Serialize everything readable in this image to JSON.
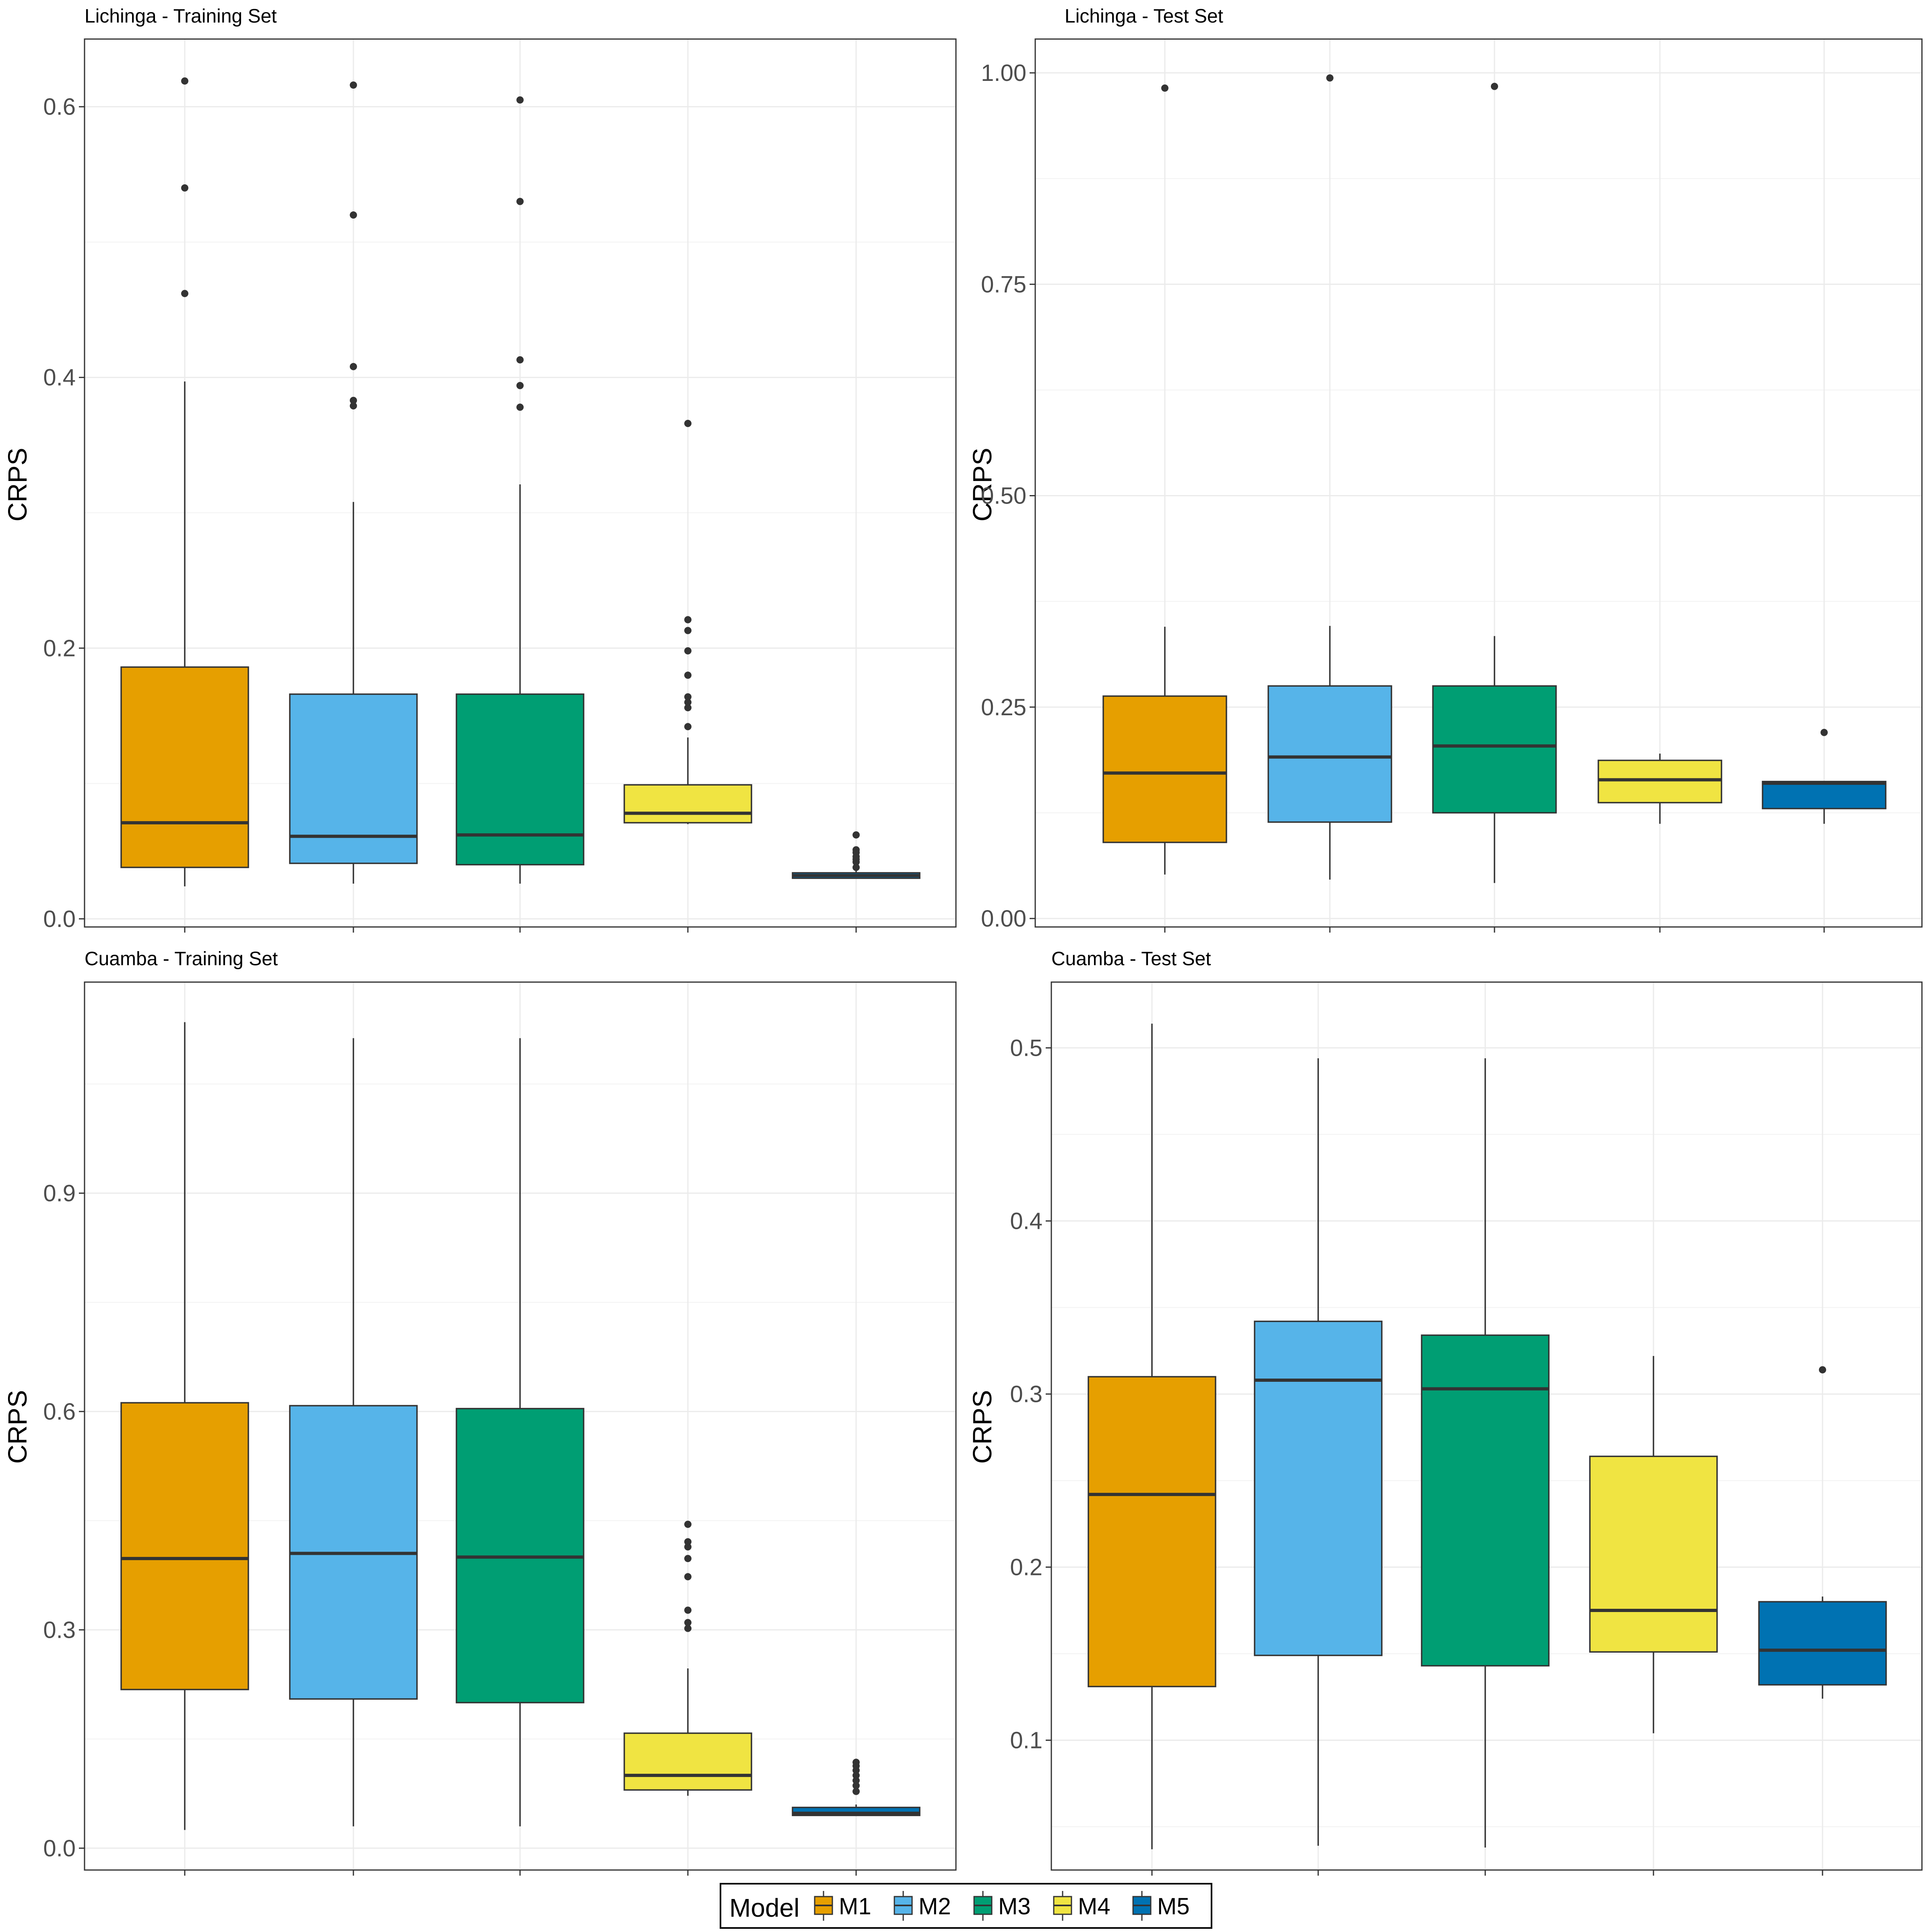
{
  "chart_data": [
    {
      "type": "box",
      "title": "Lichinga - Training Set",
      "ylabel": "CRPS",
      "ylim": [
        -0.006,
        0.65
      ],
      "yticks": [
        0.0,
        0.2,
        0.4,
        0.6
      ],
      "ytick_labels": [
        "0.0",
        "0.2",
        "0.4",
        "0.6"
      ],
      "boxes": [
        {
          "model": "M1",
          "whisker_low": 0.024,
          "q1": 0.038,
          "median": 0.071,
          "q3": 0.186,
          "whisker_high": 0.397,
          "outliers": [
            0.462,
            0.54,
            0.619
          ]
        },
        {
          "model": "M2",
          "whisker_low": 0.026,
          "q1": 0.041,
          "median": 0.061,
          "q3": 0.166,
          "whisker_high": 0.308,
          "outliers": [
            0.379,
            0.383,
            0.408,
            0.52,
            0.616
          ]
        },
        {
          "model": "M3",
          "whisker_low": 0.026,
          "q1": 0.04,
          "median": 0.062,
          "q3": 0.166,
          "whisker_high": 0.321,
          "outliers": [
            0.378,
            0.394,
            0.413,
            0.53,
            0.605
          ]
        },
        {
          "model": "M4",
          "whisker_low": 0.07,
          "q1": 0.071,
          "median": 0.078,
          "q3": 0.099,
          "whisker_high": 0.134,
          "outliers": [
            0.142,
            0.156,
            0.16,
            0.164,
            0.18,
            0.198,
            0.213,
            0.221,
            0.366
          ]
        },
        {
          "model": "M5",
          "whisker_low": 0.03,
          "q1": 0.03,
          "median": 0.032,
          "q3": 0.034,
          "whisker_high": 0.036,
          "outliers": [
            0.038,
            0.042,
            0.044,
            0.046,
            0.049,
            0.051,
            0.062
          ]
        }
      ]
    },
    {
      "type": "box",
      "title": "Lichinga - Test Set",
      "ylabel": "CRPS",
      "ylim": [
        -0.01,
        1.04
      ],
      "yticks": [
        0.0,
        0.25,
        0.5,
        0.75,
        1.0
      ],
      "ytick_labels": [
        "0.00",
        "0.25",
        "0.50",
        "0.75",
        "1.00"
      ],
      "boxes": [
        {
          "model": "M1",
          "whisker_low": 0.052,
          "q1": 0.09,
          "median": 0.172,
          "q3": 0.263,
          "whisker_high": 0.345,
          "outliers": [
            0.982
          ]
        },
        {
          "model": "M2",
          "whisker_low": 0.046,
          "q1": 0.114,
          "median": 0.191,
          "q3": 0.275,
          "whisker_high": 0.346,
          "outliers": [
            0.994
          ]
        },
        {
          "model": "M3",
          "whisker_low": 0.042,
          "q1": 0.125,
          "median": 0.204,
          "q3": 0.275,
          "whisker_high": 0.334,
          "outliers": [
            0.984
          ]
        },
        {
          "model": "M4",
          "whisker_low": 0.112,
          "q1": 0.137,
          "median": 0.164,
          "q3": 0.187,
          "whisker_high": 0.195,
          "outliers": []
        },
        {
          "model": "M5",
          "whisker_low": 0.112,
          "q1": 0.13,
          "median": 0.16,
          "q3": 0.162,
          "whisker_high": 0.162,
          "outliers": [
            0.22
          ]
        }
      ]
    },
    {
      "type": "box",
      "title": "Cuamba - Training Set",
      "ylabel": "CRPS",
      "ylim": [
        -0.03,
        1.19
      ],
      "yticks": [
        0.0,
        0.3,
        0.6,
        0.9
      ],
      "ytick_labels": [
        "0.0",
        "0.3",
        "0.6",
        "0.9"
      ],
      "boxes": [
        {
          "model": "M1",
          "whisker_low": 0.025,
          "q1": 0.218,
          "median": 0.398,
          "q3": 0.612,
          "whisker_high": 1.135,
          "outliers": []
        },
        {
          "model": "M2",
          "whisker_low": 0.03,
          "q1": 0.205,
          "median": 0.405,
          "q3": 0.608,
          "whisker_high": 1.113,
          "outliers": []
        },
        {
          "model": "M3",
          "whisker_low": 0.03,
          "q1": 0.2,
          "median": 0.4,
          "q3": 0.604,
          "whisker_high": 1.113,
          "outliers": []
        },
        {
          "model": "M4",
          "whisker_low": 0.072,
          "q1": 0.08,
          "median": 0.1,
          "q3": 0.158,
          "whisker_high": 0.247,
          "outliers": [
            0.302,
            0.31,
            0.327,
            0.373,
            0.398,
            0.414,
            0.421,
            0.445
          ]
        },
        {
          "model": "M5",
          "whisker_low": 0.045,
          "q1": 0.045,
          "median": 0.048,
          "q3": 0.056,
          "whisker_high": 0.06,
          "outliers": [
            0.078,
            0.086,
            0.093,
            0.1,
            0.107,
            0.113,
            0.118
          ]
        }
      ]
    },
    {
      "type": "box",
      "title": "Cuamba - Test Set",
      "ylabel": "CRPS",
      "ylim": [
        0.025,
        0.538
      ],
      "yticks": [
        0.1,
        0.2,
        0.3,
        0.4,
        0.5
      ],
      "ytick_labels": [
        "0.1",
        "0.2",
        "0.3",
        "0.4",
        "0.5"
      ],
      "boxes": [
        {
          "model": "M1",
          "whisker_low": 0.037,
          "q1": 0.131,
          "median": 0.242,
          "q3": 0.31,
          "whisker_high": 0.514,
          "outliers": []
        },
        {
          "model": "M2",
          "whisker_low": 0.039,
          "q1": 0.149,
          "median": 0.308,
          "q3": 0.342,
          "whisker_high": 0.494,
          "outliers": []
        },
        {
          "model": "M3",
          "whisker_low": 0.038,
          "q1": 0.143,
          "median": 0.303,
          "q3": 0.334,
          "whisker_high": 0.494,
          "outliers": []
        },
        {
          "model": "M4",
          "whisker_low": 0.104,
          "q1": 0.151,
          "median": 0.175,
          "q3": 0.264,
          "whisker_high": 0.322,
          "outliers": []
        },
        {
          "model": "M5",
          "whisker_low": 0.124,
          "q1": 0.132,
          "median": 0.152,
          "q3": 0.18,
          "whisker_high": 0.183,
          "outliers": [
            0.314
          ]
        }
      ]
    }
  ],
  "legend": {
    "title": "Model",
    "entries": [
      {
        "label": "M1",
        "color": "#E69F00"
      },
      {
        "label": "M2",
        "color": "#56B4E9"
      },
      {
        "label": "M3",
        "color": "#009E73"
      },
      {
        "label": "M4",
        "color": "#F0E442"
      },
      {
        "label": "M5",
        "color": "#0072B2"
      }
    ]
  }
}
